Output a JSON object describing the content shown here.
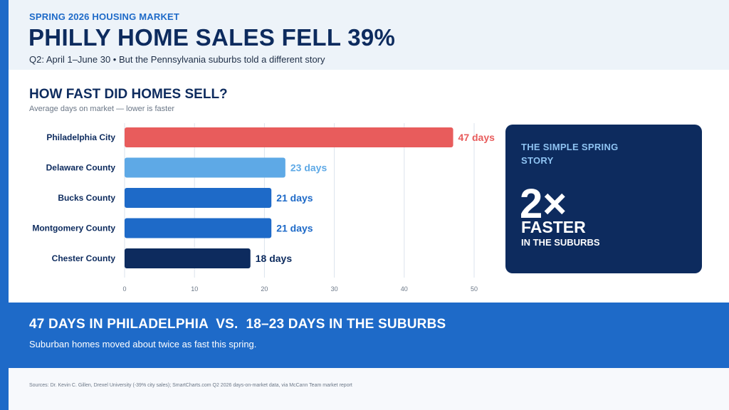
{
  "header": {
    "eyebrow": "SPRING 2026 HOUSING MARKET",
    "headline": "PHILLY HOME SALES FELL 39%",
    "subline": "Q2: April 1–June 30  •  But the Pennsylvania suburbs told a different story"
  },
  "section": {
    "title": "HOW FAST DID HOMES SELL?",
    "subtitle": "Average days on market — lower is faster"
  },
  "chart_data": {
    "type": "bar",
    "orientation": "horizontal",
    "categories": [
      "Philadelphia City",
      "Delaware County",
      "Bucks County",
      "Montgomery County",
      "Chester County"
    ],
    "values": [
      47,
      23,
      21,
      21,
      18
    ],
    "data_labels": [
      "47 days",
      "23 days",
      "21 days",
      "21 days",
      "18 days"
    ],
    "bar_colors": [
      "#e85c5c",
      "#5ea9e6",
      "#1e6ac8",
      "#1e6ac8",
      "#0d2b5e"
    ],
    "label_colors": [
      "#e85c5c",
      "#5ea9e6",
      "#1e6ac8",
      "#1e6ac8",
      "#0d2b5e"
    ],
    "xlim": [
      0,
      50
    ],
    "x_ticks": [
      0,
      10,
      20,
      30,
      40,
      50
    ],
    "grid": true
  },
  "callout": {
    "kicker": "THE SIMPLE SPRING STORY",
    "big": "2×",
    "faster": "FASTER",
    "suburbs": "IN THE SUBURBS"
  },
  "band": {
    "title": "47 DAYS IN PHILADELPHIA  VS.  18–23 DAYS IN THE SUBURBS",
    "subtitle": "Suburban homes moved about twice as fast this spring."
  },
  "footer": {
    "sources": "Sources: Dr. Kevin C. Gillen, Drexel University (-39% city sales); SmartCharts.com Q2 2026 days-on-market data, via McCann Team market report"
  }
}
